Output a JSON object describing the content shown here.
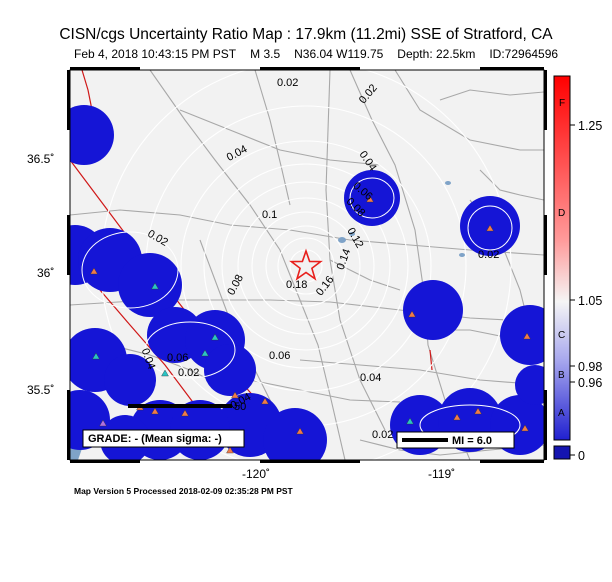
{
  "header": {
    "title": "CISN/cgs Uncertainty Ratio Map : 17.9km (11.2mi) SSE of Stratford, CA",
    "date": "Feb  4, 2018 10:43:15 PM PST",
    "magnitude": "M 3.5",
    "location": "N36.04 W119.75",
    "depth": "Depth: 22.5km",
    "event_id": "ID:72964596"
  },
  "map": {
    "lon_labels": [
      "-120˚",
      "-119˚"
    ],
    "lat_labels": [
      "36.5˚",
      "36˚",
      "35.5˚"
    ],
    "contour_labels": [
      "0.02",
      "0.02",
      "0.04",
      "0.04",
      "0.06",
      "0.08",
      "0.1",
      "0.12",
      "0.14",
      "0.16",
      "0.18",
      "0.08",
      "0.02",
      "0.06",
      "0.02",
      "0.04",
      "0.06",
      "0.04",
      "0.02",
      "0.02",
      "0.04"
    ],
    "grade_text": "GRADE: - (Mean sigma: -)",
    "mi_text": "MI = 6.0",
    "scale_label": "50",
    "colors": {
      "background": "#f2f2f2",
      "station_blob": "#1515d6",
      "epicenter": "#e8201c",
      "fault": "#d01818",
      "water": "#7fa3c8",
      "road": "#a8a8a8"
    }
  },
  "colorbar": {
    "letters": [
      "F",
      "D",
      "C",
      "B",
      "A"
    ],
    "values": [
      "1.25",
      "1.05",
      "0.98",
      "0.96",
      "0"
    ]
  },
  "footer": {
    "version": "Map Version 5 Processed 2018-02-09 02:35:28 PM PST"
  }
}
